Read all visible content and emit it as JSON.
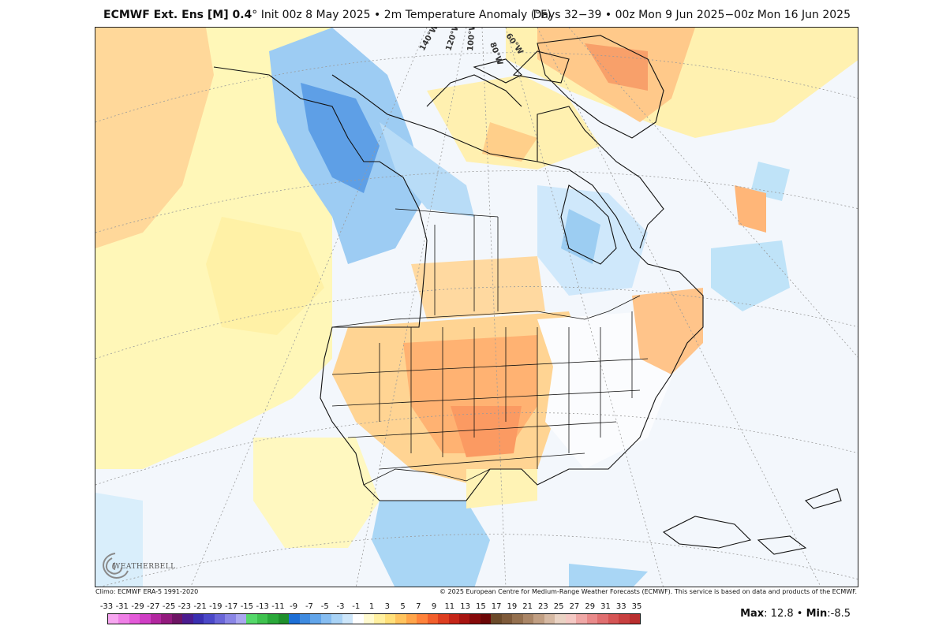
{
  "header": {
    "model": "ECMWF Ext. Ens [M] 0.4",
    "degree": "°",
    "init": "Init 00z 8 May 2025",
    "bullet": "•",
    "product": "2m Temperature Anomaly (°F)",
    "days": "Days 32−39",
    "valid": "00z Mon 9 Jun 2025−00z Mon 16 Jun 2025"
  },
  "map": {
    "longitude_labels": [
      "140°W",
      "120°W",
      "100°W",
      "80°W",
      "60°W"
    ],
    "anomaly_regions": [
      {
        "region": "Central Plains / Southwest US",
        "sign": "warm"
      },
      {
        "region": "Texas / Oklahoma",
        "sign": "warm"
      },
      {
        "region": "Greenland",
        "sign": "warm"
      },
      {
        "region": "Atlantic Canada / Northeast coast",
        "sign": "warm"
      },
      {
        "region": "Alaska / Yukon / British Columbia",
        "sign": "cold"
      },
      {
        "region": "Hudson Bay / Labrador",
        "sign": "cold"
      },
      {
        "region": "Mexico (south)",
        "sign": "cold"
      },
      {
        "region": "North Pacific",
        "sign": "slightly warm"
      }
    ]
  },
  "footer": {
    "climo": "Climo: ECMWF ERA-5 1991-2020",
    "copyright": "© 2025 European Centre for Medium-Range Weather Forecasts (ECMWF). This service is based on data and products of the ECMWF."
  },
  "colorbar": {
    "labels": [
      "-33",
      "-31",
      "-29",
      "-27",
      "-25",
      "-23",
      "-21",
      "-19",
      "-17",
      "-15",
      "-13",
      "-11",
      "-9",
      "-7",
      "-5",
      "-3",
      "-1",
      "1",
      "3",
      "5",
      "7",
      "9",
      "11",
      "13",
      "15",
      "17",
      "19",
      "21",
      "23",
      "25",
      "27",
      "29",
      "31",
      "33",
      "35"
    ],
    "colors": [
      "#f7a6f0",
      "#ef7fe6",
      "#e35ad8",
      "#cf3ec4",
      "#b2279f",
      "#921a7d",
      "#6d1464",
      "#4b1c8f",
      "#3a2fb0",
      "#4b48c8",
      "#6a66d8",
      "#8a86e6",
      "#aaa7f0",
      "#55d86a",
      "#3fc24f",
      "#2aa83a",
      "#1f8f2c",
      "#1d6fd6",
      "#3f8be0",
      "#62a5ea",
      "#86bdf1",
      "#a9d3f6",
      "#cde6fa",
      "#ffffff",
      "#fffad0",
      "#fff0a0",
      "#ffe07a",
      "#ffc45e",
      "#ffa54a",
      "#ff833b",
      "#f25f2c",
      "#de3e20",
      "#c52518",
      "#a71410",
      "#86090a",
      "#6b0606",
      "#6b4a2a",
      "#7e5a3a",
      "#94704f",
      "#aa8667",
      "#c19f83",
      "#d6b9a3",
      "#ead3c4",
      "#f4c9c4",
      "#efa8a6",
      "#e98a8a",
      "#e06f70",
      "#d55555",
      "#c84040",
      "#b92e2e"
    ]
  },
  "stats": {
    "max_label": "Max",
    "max_value": ": 12.8",
    "sep": "•",
    "min_label": "Min",
    "min_value": ":-8.5"
  },
  "logo": {
    "text": "WEATHERBELL"
  }
}
